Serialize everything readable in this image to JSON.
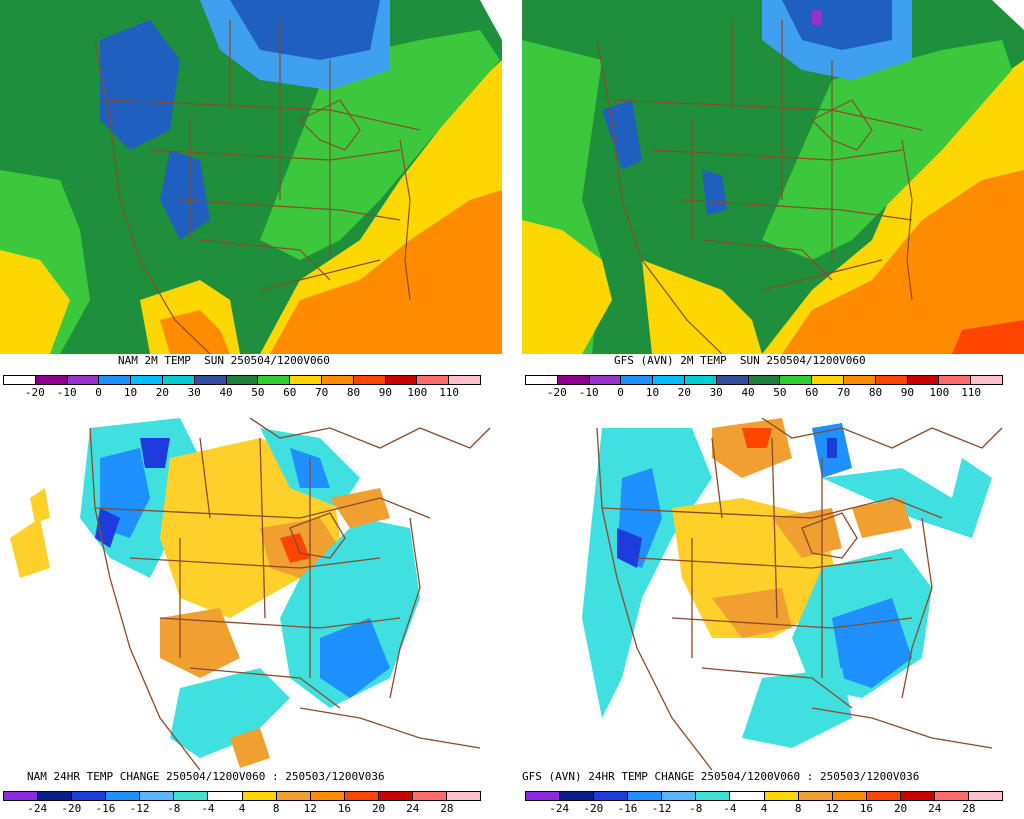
{
  "panels": [
    {
      "caption": "NAM 2M TEMP  SUN 250504/1200V060",
      "scale_labels": [
        "-20",
        "-10",
        "0",
        "10",
        "20",
        "30",
        "40",
        "50",
        "60",
        "70",
        "80",
        "90",
        "100",
        "110"
      ],
      "scale_colors": [
        "#ffffff",
        "#8b008b",
        "#9932cc",
        "#1e90ff",
        "#00bfff",
        "#00ced1",
        "#2f4f9f",
        "#1e7f3a",
        "#32cd32",
        "#ffd700",
        "#ff8c00",
        "#ff4500",
        "#cc0000",
        "#ff6b6b",
        "#ffc0cb"
      ],
      "field_type": "temperature"
    },
    {
      "caption": "GFS (AVN) 2M TEMP  SUN 250504/1200V060",
      "scale_labels": [
        "-20",
        "-10",
        "0",
        "10",
        "20",
        "30",
        "40",
        "50",
        "60",
        "70",
        "80",
        "90",
        "100",
        "110"
      ],
      "scale_colors": [
        "#ffffff",
        "#8b008b",
        "#9932cc",
        "#1e90ff",
        "#00bfff",
        "#00ced1",
        "#2f4f9f",
        "#1e7f3a",
        "#32cd32",
        "#ffd700",
        "#ff8c00",
        "#ff4500",
        "#cc0000",
        "#ff6b6b",
        "#ffc0cb"
      ],
      "field_type": "temperature"
    },
    {
      "caption": "NAM 24HR TEMP CHANGE 250504/1200V060 : 250503/1200V036",
      "scale_labels": [
        "-24",
        "-20",
        "-16",
        "-12",
        "-8",
        "-4",
        "4",
        "8",
        "12",
        "16",
        "20",
        "24",
        "28"
      ],
      "scale_colors": [
        "#8a2be2",
        "#0a1f8a",
        "#1e3cdc",
        "#1e90ff",
        "#5ab4ff",
        "#40e0d0",
        "#ffffff",
        "#ffd700",
        "#f0a030",
        "#ff8c00",
        "#ff4500",
        "#cc0000",
        "#ff6b6b",
        "#ffc0cb"
      ],
      "field_type": "change"
    },
    {
      "caption": "GFS (AVN) 24HR TEMP CHANGE 250504/1200V060 : 250503/1200V036",
      "scale_labels": [
        "-24",
        "-20",
        "-16",
        "-12",
        "-8",
        "-4",
        "4",
        "8",
        "12",
        "16",
        "20",
        "24",
        "28"
      ],
      "scale_colors": [
        "#8a2be2",
        "#0a1f8a",
        "#1e3cdc",
        "#1e90ff",
        "#5ab4ff",
        "#40e0d0",
        "#ffffff",
        "#ffd700",
        "#f0a030",
        "#ff8c00",
        "#ff4500",
        "#cc0000",
        "#ff6b6b",
        "#ffc0cb"
      ],
      "field_type": "change"
    }
  ],
  "colors": {
    "border_lines": "#8b4a2b",
    "temp_green_dark": "#1e8f3a",
    "temp_green_light": "#3cc83c",
    "temp_blue": "#1f5fbf",
    "temp_blue_light": "#3fa0f0",
    "temp_yellow": "#ffd700",
    "temp_orange": "#ff8c00",
    "temp_red": "#ff4500",
    "change_cyan": "#40e0e0",
    "change_blue": "#1e90ff",
    "change_yellow": "#ffd02a",
    "change_orange": "#f0a030"
  }
}
